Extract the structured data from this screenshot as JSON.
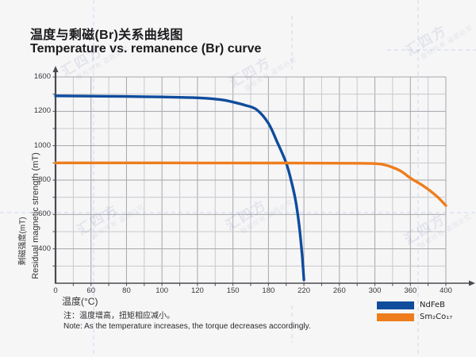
{
  "page": {
    "title_zh": "温度与剩磁(Br)关系曲线图",
    "title_en": "Temperature vs. remanence (Br) curve",
    "note_zh": "注：温度增高，扭矩相应减小。",
    "note_en": "Note: As the temperature increases, the torque decreases accordingly."
  },
  "watermark": {
    "main": "汇四方",
    "sub": "版权所有 盗图必究"
  },
  "chart_data": {
    "type": "line",
    "title": "温度与剩磁(Br)关系曲线图",
    "subtitle": "Temperature vs. remanence (Br) curve",
    "xlabel": "温度(°C)",
    "ylabel_zh": "剩磁强度(mT)",
    "ylabel_en": "Residual magnetic strength (mT)",
    "x_ticks": [
      0,
      60,
      80,
      100,
      120,
      150,
      180,
      220,
      260,
      300,
      360,
      400
    ],
    "y_ticks": [
      0,
      400,
      600,
      800,
      1000,
      1200,
      1600
    ],
    "axis_style": "tick labels evenly spaced (non-linear as drawn), minor gridline between each pair, x-axis and y-axis end in arrows",
    "grid": true,
    "legend_position": "bottom-right",
    "series": [
      {
        "name": "NdFeB",
        "color": "#0f4c9c",
        "points": [
          [
            0,
            1380
          ],
          [
            60,
            1377
          ],
          [
            80,
            1373
          ],
          [
            100,
            1367
          ],
          [
            120,
            1357
          ],
          [
            140,
            1335
          ],
          [
            150,
            1308
          ],
          [
            160,
            1272
          ],
          [
            170,
            1220
          ],
          [
            180,
            1130
          ],
          [
            190,
            1020
          ],
          [
            200,
            900
          ],
          [
            206,
            790
          ],
          [
            211,
            670
          ],
          [
            215,
            520
          ],
          [
            218,
            320
          ],
          [
            220,
            40
          ]
        ]
      },
      {
        "name": "Sm₂Co₁₇",
        "color": "#ee7d1d",
        "points": [
          [
            0,
            900
          ],
          [
            100,
            900
          ],
          [
            200,
            899
          ],
          [
            280,
            898
          ],
          [
            300,
            896
          ],
          [
            315,
            890
          ],
          [
            330,
            874
          ],
          [
            345,
            850
          ],
          [
            360,
            812
          ],
          [
            375,
            765
          ],
          [
            390,
            705
          ],
          [
            400,
            652
          ]
        ]
      }
    ]
  },
  "colors": {
    "background": "#f6f6f7",
    "grid_minor": "#c9c9cd",
    "grid_major": "#a6a6ab",
    "axis": "#4a4a50",
    "ndfeb": "#0f4c9c",
    "sm2co17": "#ee7d1d"
  }
}
